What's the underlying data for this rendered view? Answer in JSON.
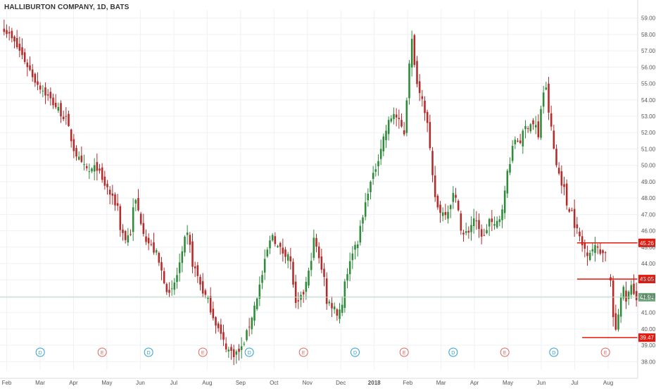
{
  "chart_title": "HALLIBURTON COMPANY, 1D, BATS",
  "colors": {
    "up": "#2e8b3a",
    "down": "#b52a2a",
    "grid": "#eef0f3",
    "axis_text": "#555555",
    "level_line": "#e8170b",
    "last_price": "#6ea57a",
    "dividend": "#2a9fd6",
    "earnings": "#e0665f"
  },
  "chart_data": {
    "type": "candlestick",
    "title": "HALLIBURTON COMPANY, 1D, BATS",
    "ylim": [
      37.5,
      59.5
    ],
    "y_ticks": [
      38,
      39,
      40,
      41,
      42,
      43,
      44,
      45,
      46,
      47,
      48,
      49,
      50,
      51,
      52,
      53,
      54,
      55,
      56,
      57,
      58,
      59
    ],
    "y_tick_labels": [
      "38.00",
      "39.00",
      "40.00",
      "41.00",
      "42.00",
      "43.00",
      "44.00",
      "45.00",
      "46.00",
      "47.00",
      "48.00",
      "49.00",
      "50.00",
      "51.00",
      "52.00",
      "53.00",
      "54.00",
      "55.00",
      "56.00",
      "57.00",
      "58.00",
      "59.00"
    ],
    "x_labels": [
      "Feb",
      "Mar",
      "Apr",
      "May",
      "Jun",
      "Jul",
      "Aug",
      "Sep",
      "Oct",
      "Nov",
      "Dec",
      "2018",
      "Feb",
      "Mar",
      "Apr",
      "May",
      "Jun",
      "Jul",
      "Aug"
    ],
    "grid": true,
    "close_path": [
      [
        0,
        58.4
      ],
      [
        6,
        57.0
      ],
      [
        12,
        55.2
      ],
      [
        18,
        54.0
      ],
      [
        24,
        52.8
      ],
      [
        27,
        51.0
      ],
      [
        30,
        50.0
      ],
      [
        33,
        49.6
      ],
      [
        36,
        49.9
      ],
      [
        38,
        49.0
      ],
      [
        40,
        48.6
      ],
      [
        42,
        47.9
      ],
      [
        44,
        47.5
      ],
      [
        45,
        46.2
      ],
      [
        47,
        45.5
      ],
      [
        49,
        45.9
      ],
      [
        50,
        47.3
      ],
      [
        51,
        47.8
      ],
      [
        53,
        46.6
      ],
      [
        55,
        45.5
      ],
      [
        57,
        45.0
      ],
      [
        59,
        44.6
      ],
      [
        60,
        44.0
      ],
      [
        62,
        43.0
      ],
      [
        64,
        42.0
      ],
      [
        65,
        42.3
      ],
      [
        67,
        43.3
      ],
      [
        68,
        44.0
      ],
      [
        69,
        44.5
      ],
      [
        70,
        45.4
      ],
      [
        71,
        45.7
      ],
      [
        72,
        45.0
      ],
      [
        73,
        44.0
      ],
      [
        75,
        43.2
      ],
      [
        77,
        42.3
      ],
      [
        79,
        41.7
      ],
      [
        81,
        40.8
      ],
      [
        83,
        40.0
      ],
      [
        85,
        39.2
      ],
      [
        87,
        38.7
      ],
      [
        89,
        38.5
      ],
      [
        91,
        38.6
      ],
      [
        92,
        38.8
      ],
      [
        94,
        39.7
      ],
      [
        96,
        40.8
      ],
      [
        98,
        42.0
      ],
      [
        100,
        43.3
      ],
      [
        102,
        44.8
      ],
      [
        104,
        45.8
      ],
      [
        106,
        45.0
      ],
      [
        108,
        44.7
      ],
      [
        110,
        44.6
      ],
      [
        111,
        44.0
      ],
      [
        112,
        42.8
      ],
      [
        113,
        41.4
      ],
      [
        114,
        41.5
      ],
      [
        116,
        42.2
      ],
      [
        118,
        43.4
      ],
      [
        120,
        45.4
      ],
      [
        121,
        45.0
      ],
      [
        122,
        44.2
      ],
      [
        124,
        43.3
      ],
      [
        125,
        41.5
      ],
      [
        126,
        41.6
      ],
      [
        128,
        41.3
      ],
      [
        129,
        41.0
      ],
      [
        131,
        41.5
      ],
      [
        132,
        43.0
      ],
      [
        134,
        44.0
      ],
      [
        135,
        44.8
      ],
      [
        137,
        45.4
      ],
      [
        139,
        46.8
      ],
      [
        141,
        48.5
      ],
      [
        143,
        49.3
      ],
      [
        145,
        50.5
      ],
      [
        147,
        51.7
      ],
      [
        149,
        52.6
      ],
      [
        151,
        53.2
      ],
      [
        153,
        52.6
      ],
      [
        155,
        52.0
      ],
      [
        156,
        54.1
      ],
      [
        157,
        56.4
      ],
      [
        158,
        57.6
      ],
      [
        159,
        56.0
      ],
      [
        161,
        54.4
      ],
      [
        162,
        54.3
      ],
      [
        164,
        52.5
      ],
      [
        165,
        50.8
      ],
      [
        166,
        49.2
      ],
      [
        167,
        48.1
      ],
      [
        168,
        47.4
      ],
      [
        170,
        47.1
      ],
      [
        172,
        47.3
      ],
      [
        174,
        48.2
      ],
      [
        176,
        47.5
      ],
      [
        177,
        46.0
      ],
      [
        178,
        45.7
      ],
      [
        180,
        46.0
      ],
      [
        182,
        46.8
      ],
      [
        184,
        46.0
      ],
      [
        186,
        45.6
      ],
      [
        188,
        46.7
      ],
      [
        190,
        46.2
      ],
      [
        192,
        46.8
      ],
      [
        194,
        48.3
      ],
      [
        195,
        49.6
      ],
      [
        196,
        50.3
      ],
      [
        198,
        51.6
      ],
      [
        200,
        51.5
      ],
      [
        202,
        52.3
      ],
      [
        204,
        52.6
      ],
      [
        206,
        52.4
      ],
      [
        207,
        51.6
      ],
      [
        208,
        53.5
      ],
      [
        209,
        54.5
      ],
      [
        210,
        54.6
      ],
      [
        211,
        53.3
      ],
      [
        212,
        52.2
      ],
      [
        213,
        51.0
      ],
      [
        214,
        50.0
      ],
      [
        215,
        49.5
      ],
      [
        217,
        48.5
      ],
      [
        218,
        47.6
      ],
      [
        220,
        47.2
      ],
      [
        221,
        46.4
      ],
      [
        223,
        45.6
      ],
      [
        224,
        45.1
      ],
      [
        226,
        44.7
      ],
      [
        228,
        44.9
      ],
      [
        230,
        45.0
      ],
      [
        232,
        44.6
      ],
      [
        233,
        44.8
      ]
    ],
    "gap_path": [
      [
        235,
        42.9
      ],
      [
        236,
        40.8
      ],
      [
        237,
        39.8
      ],
      [
        238,
        41.0
      ],
      [
        239,
        41.9
      ],
      [
        240,
        42.4
      ],
      [
        241,
        41.8
      ],
      [
        242,
        42.2
      ],
      [
        243,
        42.5
      ],
      [
        244,
        42.0
      ],
      [
        245,
        41.94
      ]
    ],
    "events": [
      {
        "x": 14,
        "type": "D"
      },
      {
        "x": 38,
        "type": "E"
      },
      {
        "x": 56,
        "type": "D"
      },
      {
        "x": 77,
        "type": "E"
      },
      {
        "x": 95,
        "type": "D"
      },
      {
        "x": 116,
        "type": "E"
      },
      {
        "x": 136,
        "type": "D"
      },
      {
        "x": 155,
        "type": "E"
      },
      {
        "x": 174,
        "type": "D"
      },
      {
        "x": 194,
        "type": "E"
      },
      {
        "x": 213,
        "type": "D"
      },
      {
        "x": 233,
        "type": "E"
      }
    ],
    "levels": [
      {
        "value": 45.26,
        "label": "45.26",
        "x_start": 222
      },
      {
        "value": 43.05,
        "label": "43.05",
        "x_start": 222
      },
      {
        "value": 39.47,
        "label": "39.47",
        "x_start": 224
      }
    ],
    "last_price": {
      "value": 41.94,
      "label": "41.94"
    }
  }
}
